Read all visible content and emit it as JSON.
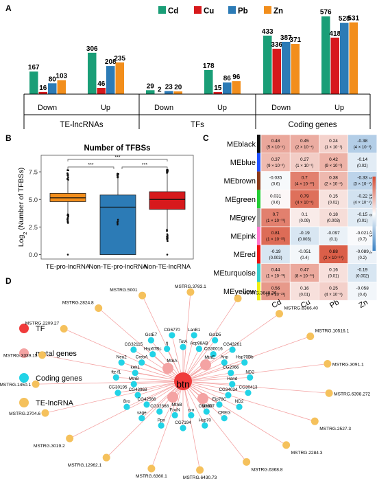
{
  "panels": {
    "a": "A",
    "b": "B",
    "c": "C",
    "d": "D"
  },
  "colors": {
    "Cd": "#1a9e77",
    "Cu": "#d7191c",
    "Pb": "#2c7bb6",
    "Zn": "#f28e1c",
    "boxTE": "#f28e1c",
    "boxNonTE": "#2c7bb6",
    "boxNonTElnc": "#d7191c",
    "nodeTF": "#f03b3b",
    "nodeMetal": "#f4a3a3",
    "nodeCoding": "#22d3e6",
    "nodeLnc": "#f5c15c",
    "edge": "#f4a3a3"
  },
  "chart_data": [
    {
      "type": "bar",
      "legend": [
        "Cd",
        "Cu",
        "Pb",
        "Zn"
      ],
      "groups": [
        {
          "name": "TE-lncRNAs",
          "categories": [
            {
              "label": "Down",
              "values": [
                167,
                16,
                80,
                103
              ]
            },
            {
              "label": "Up",
              "values": [
                306,
                46,
                208,
                235
              ]
            }
          ]
        },
        {
          "name": "TFs",
          "categories": [
            {
              "label": "Down",
              "values": [
                29,
                2,
                23,
                20
              ]
            },
            {
              "label": "Up",
              "values": [
                178,
                15,
                86,
                96
              ]
            }
          ]
        },
        {
          "name": "Coding genes",
          "categories": [
            {
              "label": "Down",
              "values": [
                433,
                336,
                387,
                371
              ]
            },
            {
              "label": "Up",
              "values": [
                576,
                418,
                528,
                531
              ]
            }
          ]
        }
      ],
      "ylim": [
        0,
        600
      ]
    },
    {
      "type": "box",
      "title": "Number of TFBSs",
      "ylabel_prefix": "Log",
      "ylabel_sub": "2",
      "ylabel_suffix": " (Number of TFBSs)",
      "yticks": [
        "0.0",
        "2.5",
        "5.0",
        "7.5"
      ],
      "ytick_values": [
        0,
        2.5,
        5,
        7.5
      ],
      "ylim": [
        -0.4,
        9
      ],
      "categories": [
        "TE-pro-lncRNA",
        "Non-TE-pro-lncRNA",
        "Non-TE-lncRNA"
      ],
      "boxes": [
        {
          "q1": 4.8,
          "median": 5.15,
          "q3": 5.55,
          "whisker_low": 3.7,
          "whisker_high": 6.7
        },
        {
          "q1": 0.0,
          "median": 4.3,
          "q3": 5.4,
          "whisker_low": 0.0,
          "whisker_high": 7.0
        },
        {
          "q1": 4.1,
          "median": 5.0,
          "q3": 5.7,
          "whisker_low": 2.3,
          "whisker_high": 7.4
        }
      ],
      "significance": [
        {
          "from": 0,
          "to": 2,
          "label": "***"
        },
        {
          "from": 0,
          "to": 1,
          "label": "***"
        },
        {
          "from": 1,
          "to": 2,
          "label": "***"
        }
      ]
    },
    {
      "type": "heatmap",
      "columns": [
        "Cd",
        "Cu",
        "Pb",
        "Zn"
      ],
      "colorbar_ticks": [
        "1",
        "0.5",
        "0",
        "-0.5",
        "-1"
      ],
      "rows": [
        {
          "name": "MEblack",
          "swatch": "#111111",
          "cells": [
            {
              "r": 0.48,
              "p": "(5 × 10⁻⁵)"
            },
            {
              "r": 0.45,
              "p": "(2 × 10⁻⁴)"
            },
            {
              "r": 0.24,
              "p": "(1 × 10⁻¹)"
            },
            {
              "r": -0.38,
              "p": "(4 × 10⁻³)"
            }
          ]
        },
        {
          "name": "MEblue",
          "swatch": "#1f4fff",
          "cells": [
            {
              "r": 0.37,
              "p": "(9 × 10⁻³)"
            },
            {
              "r": 0.27,
              "p": "(1 × 10⁻¹)"
            },
            {
              "r": 0.42,
              "p": "(9 × 10⁻³)"
            },
            {
              "r": -0.14,
              "p": "(0.02)"
            }
          ]
        },
        {
          "name": "MEbrown",
          "swatch": "#8b3a1a",
          "cells": [
            {
              "r": -0.035,
              "p": "(0.6)"
            },
            {
              "r": 0.7,
              "p": "(4 × 10⁻¹⁰)"
            },
            {
              "r": 0.38,
              "p": "(2 × 10⁻⁵)"
            },
            {
              "r": -0.33,
              "p": "(3 × 10⁻⁵)"
            }
          ]
        },
        {
          "name": "MEgreen",
          "swatch": "#22cc33",
          "cells": [
            {
              "r": 0.031,
              "p": "(0.6)"
            },
            {
              "r": 0.79,
              "p": "(4 × 10⁻⁵)"
            },
            {
              "r": 0.15,
              "p": "(0.02)"
            },
            {
              "r": -0.22,
              "p": "(4 × 10⁻⁴)"
            }
          ]
        },
        {
          "name": "MEgrey",
          "swatch": "#a6a6a6",
          "cells": [
            {
              "r": 0.7,
              "p": "(1 × 10⁻¹¹)"
            },
            {
              "r": 0.1,
              "p": "(0.09)"
            },
            {
              "r": 0.18,
              "p": "(0.003)"
            },
            {
              "r": -0.15,
              "p": "(0.01)"
            }
          ]
        },
        {
          "name": "MEpink",
          "swatch": "#ff77cc",
          "cells": [
            {
              "r": 0.81,
              "p": "(1 × 10⁻²²)"
            },
            {
              "r": -0.19,
              "p": "(0.003)"
            },
            {
              "r": -0.097,
              "p": "(0.1)"
            },
            {
              "r": -0.021,
              "p": "(0.7)"
            }
          ]
        },
        {
          "name": "MEred",
          "swatch": "#ee1111",
          "cells": [
            {
              "r": -0.19,
              "p": "(0.003)"
            },
            {
              "r": -0.051,
              "p": "(0.4)"
            },
            {
              "r": 0.88,
              "p": "(2 × 10⁻⁸⁸)"
            },
            {
              "r": -0.089,
              "p": "(0.2)"
            }
          ]
        },
        {
          "name": "MEturquoise",
          "swatch": "#33cccc",
          "cells": [
            {
              "r": 0.44,
              "p": "(1 × 10⁻¹³)"
            },
            {
              "r": 0.47,
              "p": "(8 × 10⁻¹⁵)"
            },
            {
              "r": 0.16,
              "p": "(0.01)"
            },
            {
              "r": -0.19,
              "p": "(0.002)"
            }
          ]
        },
        {
          "name": "MEyellow",
          "swatch": "#eeee11",
          "cells": [
            {
              "r": 0.56,
              "p": "(3 × 10⁻²³)"
            },
            {
              "r": 0.16,
              "p": "(0.01)"
            },
            {
              "r": 0.25,
              "p": "(4 × 10⁻⁵)"
            },
            {
              "r": -0.058,
              "p": "(0.4)"
            }
          ]
        }
      ]
    },
    {
      "type": "network",
      "legend": [
        {
          "label": "TF",
          "kind": "tf"
        },
        {
          "label": "metal genes",
          "kind": "metal"
        },
        {
          "label": "Coding genes",
          "kind": "coding"
        },
        {
          "label": "TE-lncRNA",
          "kind": "lnc"
        }
      ],
      "hub": "btn",
      "metal_genes": [
        "MtnE",
        "MtnA",
        "MtnD",
        "MtnB"
      ],
      "coding_genes": [
        "TotA",
        "LanB1",
        "Acp98AB",
        "GstD5",
        "CG30016",
        "CG43261",
        "Anp",
        "Hsp70Bb",
        "CG2066",
        "ND2",
        "Hand",
        "CG30413",
        "CG34034",
        "ND2",
        "Eip78C",
        "CREG",
        "CG3397",
        "Hsp70",
        "cro",
        "CG7194",
        "FoxN",
        "Ppn",
        "CG32368",
        "sage",
        "CG42566",
        "Bro",
        "CG43968",
        "CG30195",
        "MtnB",
        "ftz-f1",
        "kek1",
        "Neu2",
        "CrebA",
        "CG32115",
        "Hsp67Bc",
        "GstE7",
        "tj",
        "CG6770"
      ],
      "lncrnas": [
        "MSTRG.5001",
        "MSTRG.3783.1",
        "MSTRG.3648.36",
        "MSTRG.6366.40",
        "MSTRG.10516.1",
        "MSTRG.3091.1",
        "MSTRG.6398.272",
        "MSTRG.2527.3",
        "MSTRG.2284.3",
        "MSTRG.6368.8",
        "MSTRG.6430.73",
        "MSTRG.6360.1",
        "MSTRG.12962.1",
        "MSTRG.3019.2",
        "MSTRG.2704.6",
        "MSTRG.1450.1",
        "MSTRG.3339.15",
        "MSTRG.2209.27",
        "MSTRG.2824.8"
      ]
    }
  ]
}
